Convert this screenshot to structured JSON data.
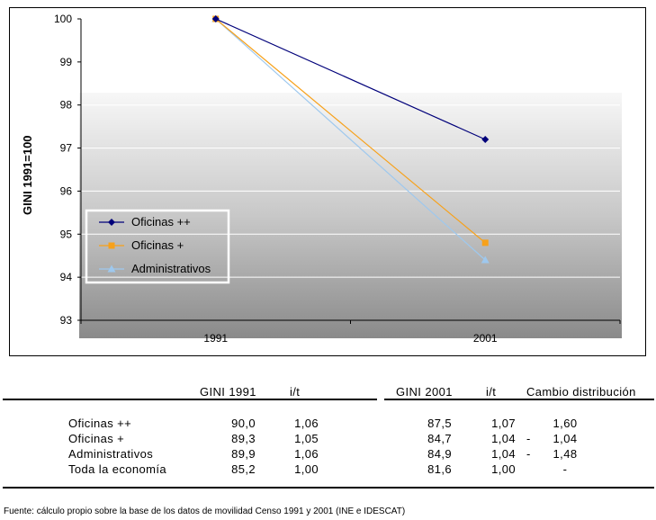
{
  "chart_data": {
    "type": "line",
    "categories": [
      "1991",
      "2001"
    ],
    "ylabel": "GINI 1991=100",
    "ylim": [
      93,
      100
    ],
    "yticks": [
      93,
      94,
      95,
      96,
      97,
      98,
      99,
      100
    ],
    "grid": true,
    "legend_position": "left",
    "series": [
      {
        "name": "Oficinas ++",
        "values": [
          100,
          97.2
        ],
        "color": "#00007a",
        "marker": "diamond"
      },
      {
        "name": "Oficinas +",
        "values": [
          100,
          94.8
        ],
        "color": "#f7a11a",
        "marker": "square"
      },
      {
        "name": "Administrativos",
        "values": [
          100,
          94.4
        ],
        "color": "#9ec8ee",
        "marker": "triangle"
      }
    ]
  },
  "table": {
    "headers": [
      "GINI 1991",
      "i/t",
      "GINI 2001",
      "i/t",
      "Cambio distribución"
    ],
    "rows": [
      {
        "label": "Oficinas ++",
        "gini1991": "90,0",
        "it1991": "1,06",
        "gini2001": "87,5",
        "it2001": "1,07",
        "sign": "",
        "cambio": "1,60"
      },
      {
        "label": "Oficinas +",
        "gini1991": "89,3",
        "it1991": "1,05",
        "gini2001": "84,7",
        "it2001": "1,04",
        "sign": "-",
        "cambio": "1,04"
      },
      {
        "label": "Administrativos",
        "gini1991": "89,9",
        "it1991": "1,06",
        "gini2001": "84,9",
        "it2001": "1,04",
        "sign": "-",
        "cambio": "1,48"
      },
      {
        "label": "Toda la economía",
        "gini1991": "85,2",
        "it1991": "1,00",
        "gini2001": "81,6",
        "it2001": "1,00",
        "sign": "",
        "cambio": "-"
      }
    ]
  },
  "source": "Fuente: cálculo propio sobre la base de los datos de movilidad Censo 1991 y 2001 (INE e IDESCAT)"
}
